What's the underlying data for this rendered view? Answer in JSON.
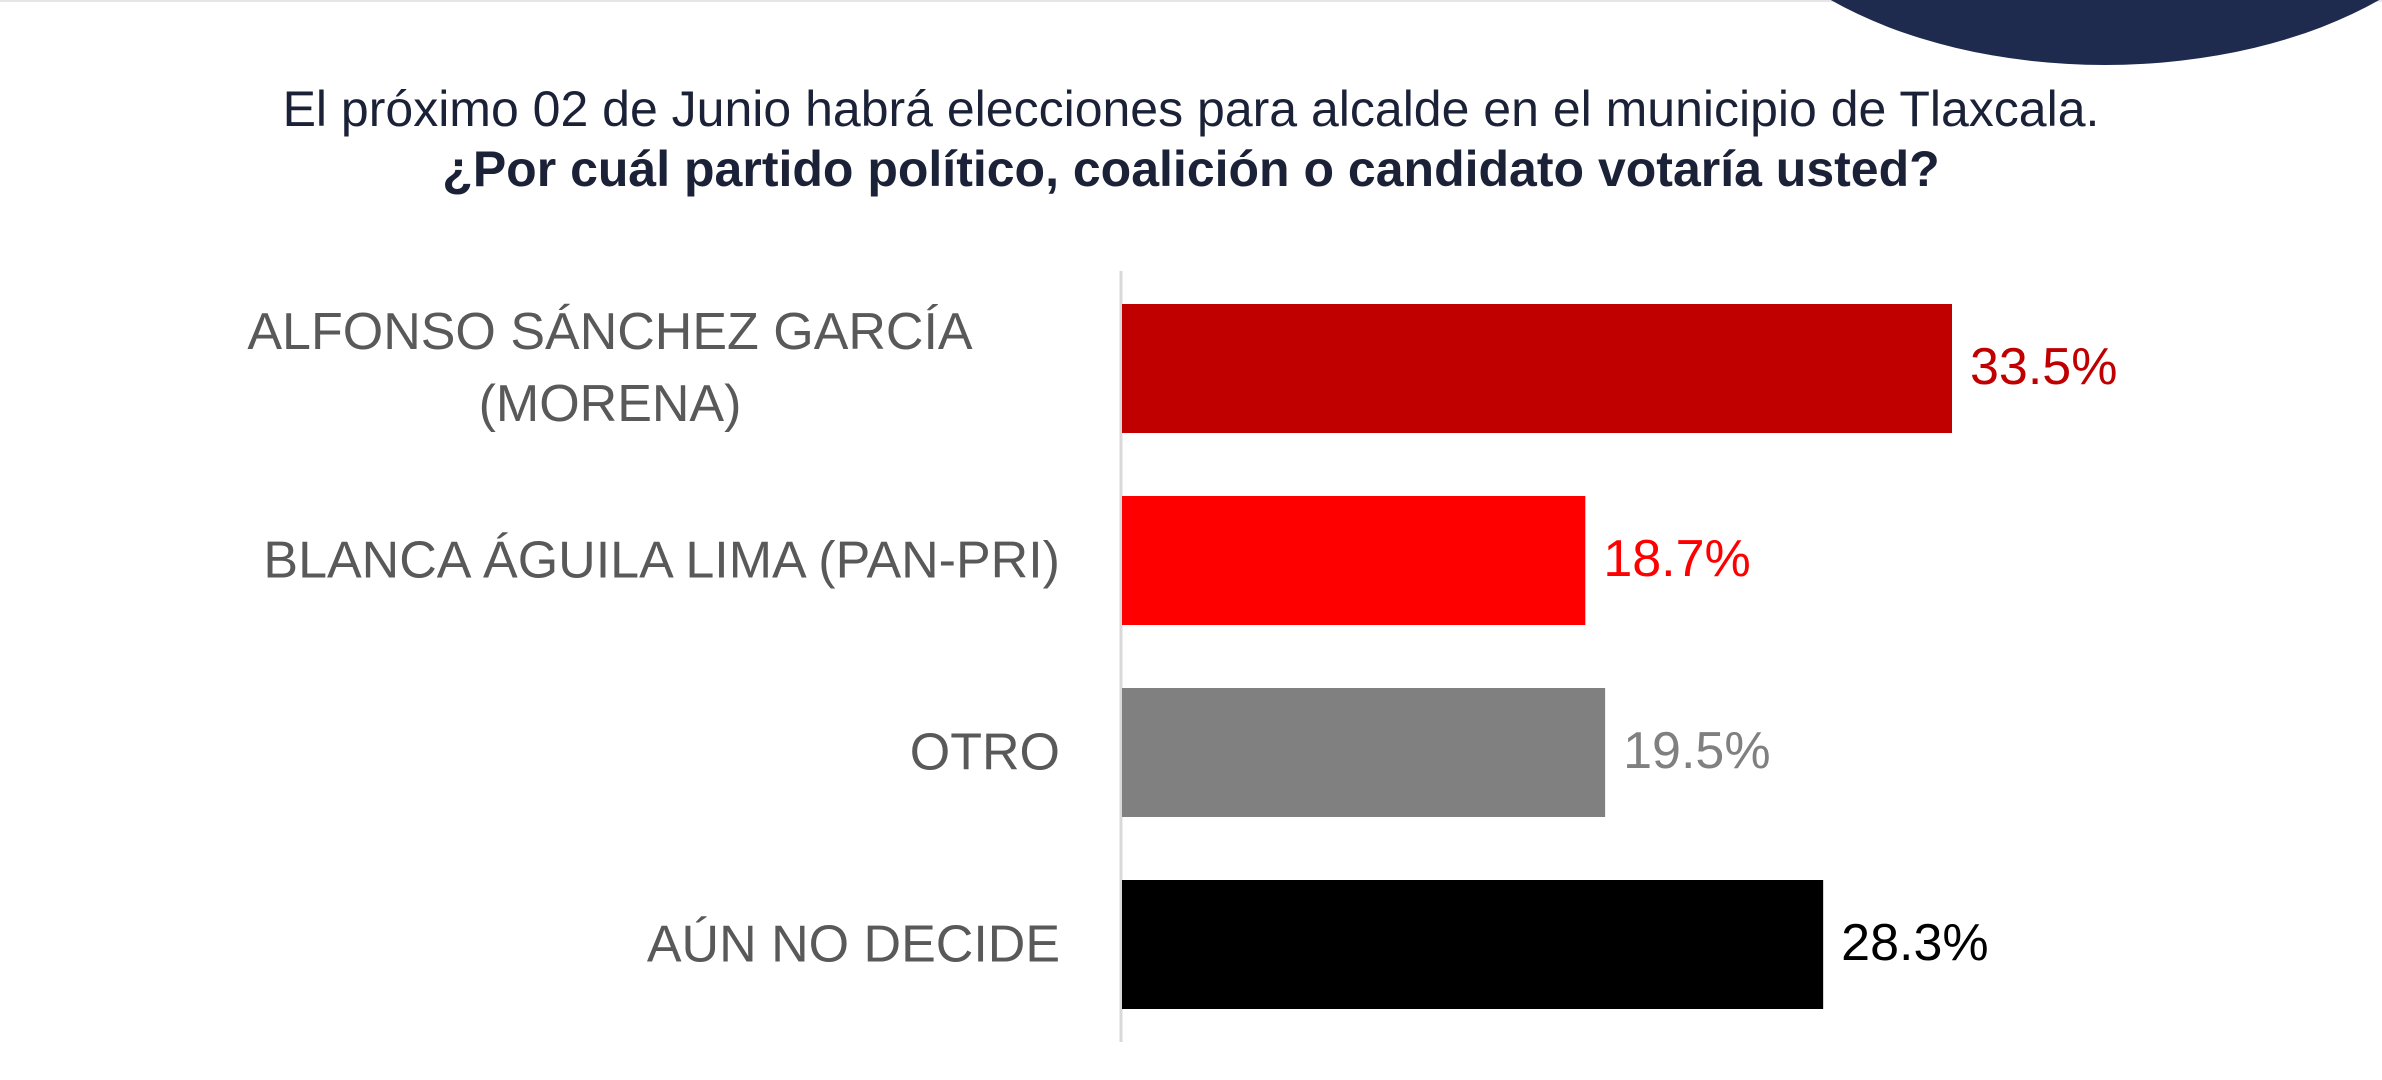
{
  "chart_data": {
    "type": "hbar",
    "title": "El próximo 02 de Junio habrá elecciones para alcalde en el municipio de Tlaxcala.",
    "subtitle": "¿Por cuál partido político, coalición o candidato votaría usted?",
    "categories": [
      "ALFONSO SÁNCHEZ GARCÍA (MORENA)",
      "BLANCA ÁGUILA LIMA (PAN-PRI)",
      "OTRO",
      "AÚN NO DECIDE"
    ],
    "values": [
      33.5,
      18.7,
      19.5,
      28.3
    ],
    "value_labels": [
      "33.5%",
      "18.7%",
      "19.5%",
      "28.3%"
    ],
    "colors": [
      "#c00000",
      "#ff0000",
      "#808080",
      "#000000"
    ]
  }
}
